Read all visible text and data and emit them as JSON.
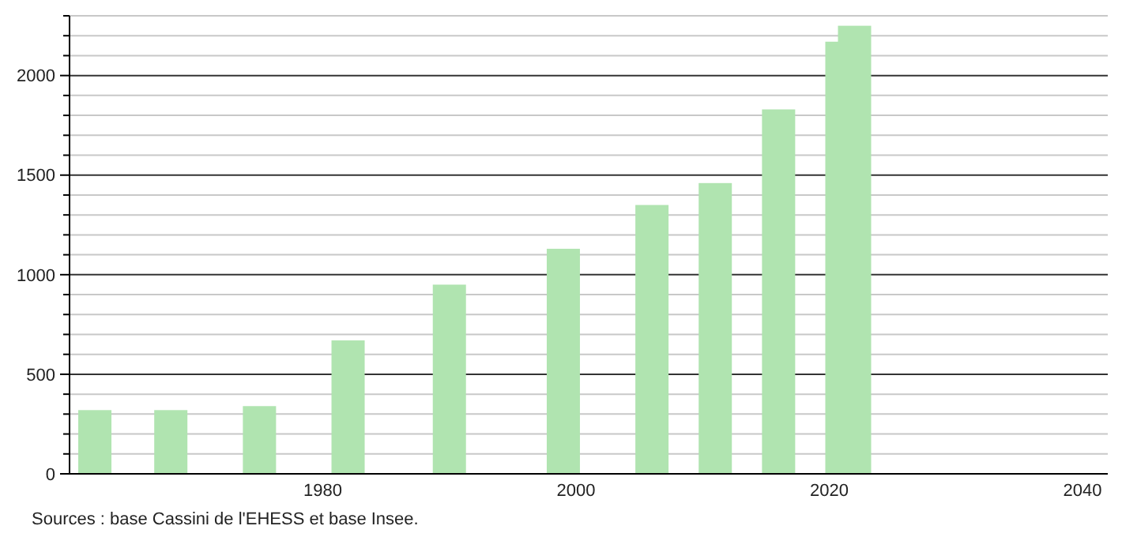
{
  "chart_data": {
    "type": "bar",
    "x": [
      1962,
      1968,
      1975,
      1982,
      1990,
      1999,
      2006,
      2011,
      2016,
      2021,
      2022
    ],
    "values": [
      320,
      320,
      340,
      670,
      950,
      1130,
      1350,
      1460,
      1830,
      2170,
      2250
    ],
    "color": "#b0e4b0",
    "xlim": [
      1960,
      2042
    ],
    "xticks": [
      1980,
      2000,
      2020,
      2040
    ],
    "ylim": [
      0,
      2300
    ],
    "yticks": [
      0,
      {
        "value": 100,
        "label": null
      },
      {
        "value": 200,
        "label": null
      },
      {
        "value": 300,
        "label": null
      },
      {
        "value": 400,
        "label": null
      },
      500,
      {
        "value": 600,
        "label": null
      },
      {
        "value": 700,
        "label": null
      },
      {
        "value": 800,
        "label": null
      },
      {
        "value": 900,
        "label": null
      },
      1000,
      {
        "value": 1100,
        "label": null
      },
      {
        "value": 1200,
        "label": null
      },
      {
        "value": 1300,
        "label": null
      },
      {
        "value": 1400,
        "label": null
      },
      1500,
      {
        "value": 1600,
        "label": null
      },
      {
        "value": 1700,
        "label": null
      },
      {
        "value": 1800,
        "label": null
      },
      {
        "value": 1900,
        "label": null
      },
      2000,
      {
        "value": 2100,
        "label": null
      },
      {
        "value": 2200,
        "label": null
      },
      {
        "value": 2300,
        "label": null
      }
    ],
    "grid": "y",
    "annotations": [
      "Sources : base Cassini de l'EHESS et base Insee."
    ]
  }
}
